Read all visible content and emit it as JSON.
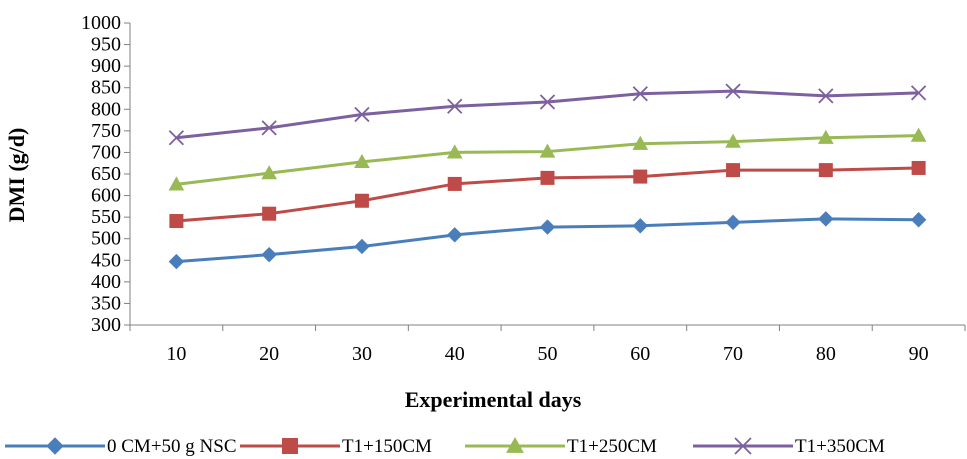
{
  "chart_data": {
    "type": "line",
    "title": "",
    "xlabel": "Experimental days",
    "ylabel": "DMI (g/d)",
    "categories": [
      "10",
      "20",
      "30",
      "40",
      "50",
      "60",
      "70",
      "80",
      "90"
    ],
    "ylim": [
      300,
      1000
    ],
    "ytick_step": 50,
    "grid": false,
    "legend_position": "bottom",
    "series": [
      {
        "name": "0 CM+50 g NSC",
        "color": "#4a7ebb",
        "marker": "diamond",
        "values": [
          447,
          463,
          482,
          509,
          527,
          530,
          538,
          546,
          544
        ]
      },
      {
        "name": "T1+150CM",
        "color": "#be4b48",
        "marker": "square",
        "values": [
          541,
          558,
          588,
          627,
          641,
          644,
          659,
          659,
          664
        ]
      },
      {
        "name": "T1+250CM",
        "color": "#98b954",
        "marker": "triangle",
        "values": [
          626,
          652,
          678,
          700,
          702,
          720,
          725,
          734,
          739
        ]
      },
      {
        "name": "T1+350CM",
        "color": "#7d60a0",
        "marker": "x",
        "values": [
          734,
          757,
          788,
          807,
          817,
          836,
          842,
          831,
          838
        ]
      }
    ]
  }
}
